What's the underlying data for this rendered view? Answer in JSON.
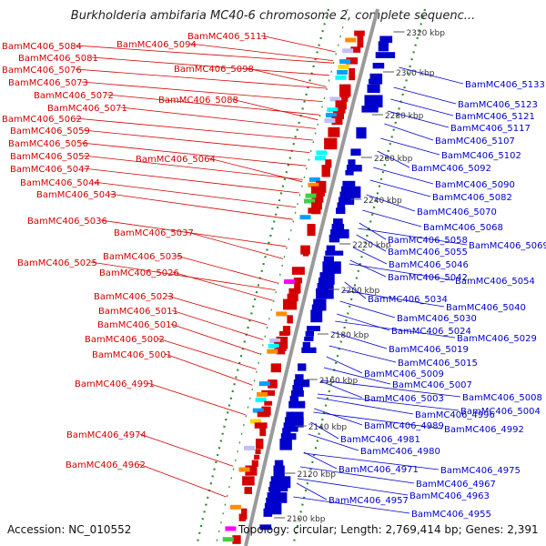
{
  "title": "Burkholderia ambifaria MC40-6 chromosome 2, complete sequenc...",
  "footer": {
    "accession": "Accession: NC_010552",
    "topology": "Topology: circular; Length: 2,769,414 bp; Genes: 2,391"
  },
  "colors": {
    "forward": "#d40000",
    "reverse": "#0000cc",
    "backbone": "#9a9a9a",
    "gc_ring": "#2e8b2e"
  },
  "scale_labels": [
    "2320 kbp",
    "2300 kbp",
    "2280 kbp",
    "2260 kbp",
    "2240 kbp",
    "2220 kbp",
    "2200 kbp",
    "2180 kbp",
    "2160 kbp",
    "2140 kbp",
    "2120 kbp",
    "2100 kbp"
  ],
  "left_genes": [
    "BamMC406_5111",
    "BamMC406_5094",
    "BamMC406_5084",
    "BamMC406_5081",
    "BamMC406_5098",
    "BamMC406_5076",
    "BamMC406_5073",
    "BamMC406_5072",
    "BamMC406_5088",
    "BamMC406_5071",
    "BamMC406_5062",
    "BamMC406_5059",
    "BamMC406_5056",
    "BamMC406_5064",
    "BamMC406_5052",
    "BamMC406_5047",
    "BamMC406_5044",
    "BamMC406_5043",
    "BamMC406_5036",
    "BamMC406_5037",
    "BamMC406_5035",
    "BamMC406_5025",
    "BamMC406_5026",
    "BamMC406_5023",
    "BamMC406_5011",
    "BamMC406_5010",
    "BamMC406_5002",
    "BamMC406_5001",
    "BamMC406_4991",
    "BamMC406_4974",
    "BamMC406_4962"
  ],
  "right_genes": [
    "BamMC406_5133",
    "BamMC406_5123",
    "BamMC406_5121",
    "BamMC406_5117",
    "BamMC406_5107",
    "BamMC406_5102",
    "BamMC406_5092",
    "BamMC406_5090",
    "BamMC406_5082",
    "BamMC406_5070",
    "BamMC406_5068",
    "BamMC406_5058",
    "BamMC406_5069",
    "BamMC406_5055",
    "BamMC406_5046",
    "BamMC406_5042",
    "BamMC406_5054",
    "BamMC406_5034",
    "BamMC406_5040",
    "BamMC406_5030",
    "BamMC406_5024",
    "BamMC406_5029",
    "BamMC406_5019",
    "BamMC406_5015",
    "BamMC406_5009",
    "BamMC406_5007",
    "BamMC406_5003",
    "BamMC406_5008",
    "BamMC406_4996",
    "BamMC406_5004",
    "BamMC406_4989",
    "BamMC406_4992",
    "BamMC406_4981",
    "BamMC406_4980",
    "BamMC406_4971",
    "BamMC406_4975",
    "BamMC406_4967",
    "BamMC406_4963",
    "BamMC406_4957",
    "BamMC406_4955"
  ]
}
